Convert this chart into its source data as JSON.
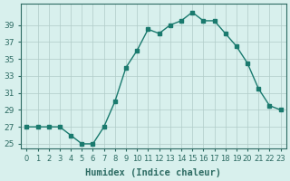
{
  "x": [
    0,
    1,
    2,
    3,
    4,
    5,
    6,
    7,
    8,
    9,
    10,
    11,
    12,
    13,
    14,
    15,
    16,
    17,
    18,
    19,
    20,
    21,
    22,
    23
  ],
  "y": [
    27,
    27,
    27,
    27,
    26,
    25,
    25,
    27,
    30,
    34,
    36,
    38.5,
    38,
    39,
    39.5,
    40.5,
    39.5,
    39.5,
    38,
    36.5,
    34.5,
    31.5,
    29.5,
    29
  ],
  "line_color": "#1a7a6e",
  "marker_color": "#1a7a6e",
  "bg_color": "#d8f0ed",
  "grid_color": "#b0ccc8",
  "xlabel": "Humidex (Indice chaleur)",
  "ylim": [
    24.5,
    41.5
  ],
  "xlim": [
    -0.5,
    23.5
  ],
  "yticks": [
    25,
    27,
    29,
    31,
    33,
    35,
    37,
    39
  ],
  "xtick_labels": [
    "0",
    "1",
    "2",
    "3",
    "4",
    "5",
    "6",
    "7",
    "8",
    "9",
    "10",
    "11",
    "12",
    "13",
    "14",
    "15",
    "16",
    "17",
    "18",
    "19",
    "20",
    "21",
    "22",
    "23"
  ],
  "tick_color": "#2d6b63",
  "axis_color": "#2d6b63",
  "xlabel_fontsize": 7.5,
  "tick_fontsize": 6.5
}
